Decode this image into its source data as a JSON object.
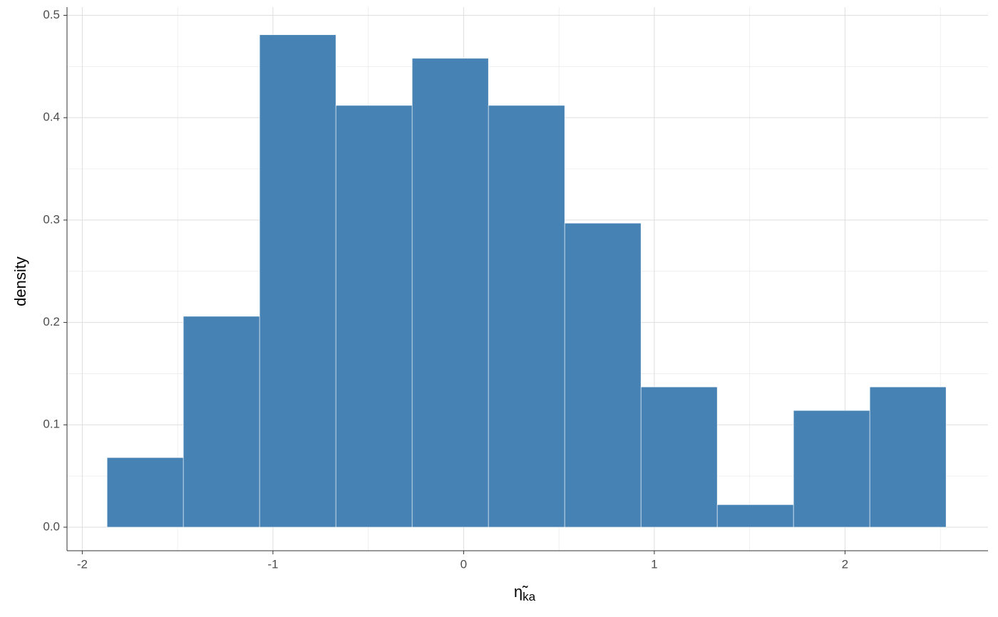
{
  "chart_data": {
    "type": "histogram",
    "xlabel": "η̃",
    "xlabel_subscript": "ka",
    "ylabel": "density",
    "bins": [
      -1.87,
      -1.47,
      -1.07,
      -0.67,
      -0.27,
      0.13,
      0.53,
      0.93,
      1.33,
      1.73,
      2.13,
      2.53
    ],
    "values": [
      0.068,
      0.206,
      0.481,
      0.412,
      0.458,
      0.412,
      0.297,
      0.137,
      0.022,
      0.114,
      0.137
    ],
    "color": "#4682b4",
    "xlim": [
      -2.08,
      2.75
    ],
    "xticks": [
      -2,
      -1,
      0,
      1,
      2
    ],
    "ylim": [
      -0.023,
      0.508
    ],
    "yticks": [
      {
        "value": 0,
        "label": "0.0"
      },
      0.1,
      0.2,
      0.3,
      0.4,
      0.5
    ],
    "grid": true
  }
}
